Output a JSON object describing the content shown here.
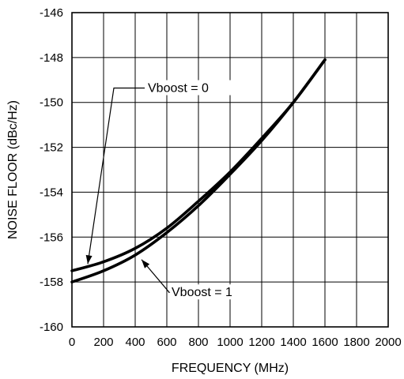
{
  "chart_data": {
    "type": "line",
    "title": "",
    "xlabel": "FREQUENCY (MHz)",
    "ylabel": "NOISE FLOOR (dBc/Hz)",
    "xlim": [
      0,
      2000
    ],
    "ylim": [
      -160,
      -146
    ],
    "xticks": [
      0,
      200,
      400,
      600,
      800,
      1000,
      1200,
      1400,
      1600,
      1800,
      2000
    ],
    "yticks": [
      -160,
      -158,
      -156,
      -154,
      -152,
      -150,
      -148,
      -146
    ],
    "grid": true,
    "legend": "none",
    "series": [
      {
        "name": "Vboost = 0",
        "x": [
          0,
          200,
          400,
          600,
          800,
          1000,
          1200,
          1400,
          1600
        ],
        "y": [
          -157.5,
          -157.1,
          -156.5,
          -155.6,
          -154.4,
          -153.1,
          -151.6,
          -150.0,
          -148.1
        ]
      },
      {
        "name": "Vboost = 1",
        "x": [
          0,
          200,
          400,
          600,
          800,
          1000,
          1200,
          1400,
          1600
        ],
        "y": [
          -158.0,
          -157.5,
          -156.8,
          -155.8,
          -154.6,
          -153.2,
          -151.7,
          -150.0,
          -148.1
        ]
      }
    ],
    "annotations": [
      {
        "text": "Vboost = 0",
        "series": 0,
        "text_at": [
          480,
          -149.5
        ],
        "elbow_at": [
          265,
          -149.5
        ],
        "points_to": [
          100,
          -157.2
        ]
      },
      {
        "text": "Vboost = 1",
        "series": 1,
        "text_at": [
          630,
          -158.6
        ],
        "elbow_at": [
          615,
          -158.6
        ],
        "points_to": [
          440,
          -157.0
        ]
      }
    ]
  }
}
